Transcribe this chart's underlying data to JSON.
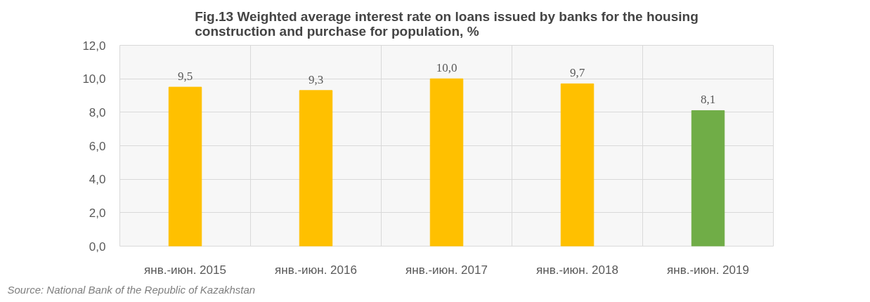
{
  "chart_data": {
    "type": "bar",
    "title": "Fig.13 Weighted average interest rate on loans issued by banks for the housing construction and purchase for population, %",
    "categories": [
      "янв.-июн. 2015",
      "янв.-июн. 2016",
      "янв.-июн. 2017",
      "янв.-июн. 2018",
      "янв.-июн. 2019"
    ],
    "values": [
      9.5,
      9.3,
      10.0,
      9.7,
      8.1
    ],
    "colors": [
      "#ffc000",
      "#ffc000",
      "#ffc000",
      "#ffc000",
      "#70ad47"
    ],
    "value_labels": [
      "9,5",
      "9,3",
      "10,0",
      "9,7",
      "8,1"
    ],
    "ylim": [
      0,
      12
    ],
    "yticks": [
      {
        "value": 0,
        "label": "0,0"
      },
      {
        "value": 2,
        "label": "2,0"
      },
      {
        "value": 4,
        "label": "4,0"
      },
      {
        "value": 6,
        "label": "6,0"
      },
      {
        "value": 8,
        "label": "8,0"
      },
      {
        "value": 10,
        "label": "10,0"
      },
      {
        "value": 12,
        "label": "12,0"
      }
    ],
    "grid": true,
    "annotations": [
      "Source: National Bank of the Republic of Kazakhstan"
    ]
  }
}
